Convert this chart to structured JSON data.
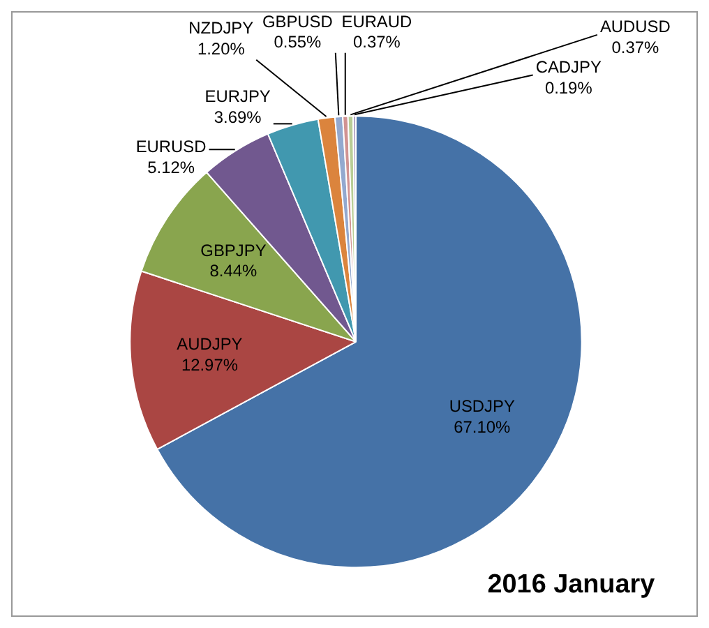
{
  "chart_data": {
    "type": "pie",
    "title": "2016 January",
    "categories": [
      "USDJPY",
      "AUDJPY",
      "GBPJPY",
      "EURUSD",
      "EURJPY",
      "NZDJPY",
      "GBPUSD",
      "EURAUD",
      "AUDUSD",
      "CADJPY"
    ],
    "values": [
      67.1,
      12.97,
      8.44,
      5.12,
      3.69,
      1.2,
      0.55,
      0.37,
      0.37,
      0.19
    ],
    "value_labels": [
      "67.10%",
      "12.97%",
      "8.44%",
      "5.12%",
      "3.69%",
      "1.20%",
      "0.55%",
      "0.37%",
      "0.37%",
      "0.19%"
    ],
    "colors": [
      "#4572a7",
      "#aa4643",
      "#89a54e",
      "#71588f",
      "#4198af",
      "#db843d",
      "#93a9cf",
      "#d19392",
      "#b9cd96",
      "#a99bbd"
    ],
    "legend": false
  }
}
